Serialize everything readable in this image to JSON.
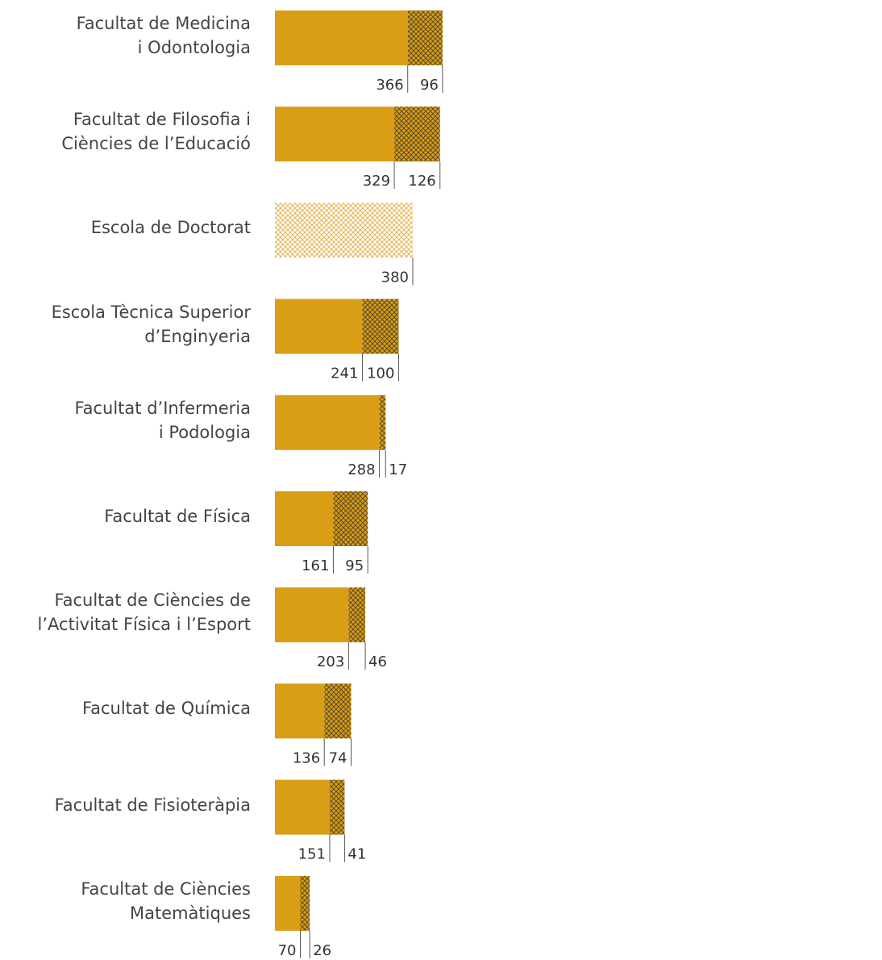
{
  "chart_data": {
    "type": "bar",
    "orientation": "horizontal",
    "stacked": true,
    "categories": [
      "Facultat de Medicina\ni Odontologia",
      "Facultat de Filosofia i\nCiències de l’Educació",
      "Escola de Doctorat",
      "Escola Tècnica Superior\nd’Enginyeria",
      "Facultat d’Infermeria\ni Podologia",
      "Facultat de Física",
      "Facultat de Ciències de\nl’Activitat Física i l’Esport",
      "Facultat de Química",
      "Facultat de Fisioteràpia",
      "Facultat de Ciències\nMatemàtiques"
    ],
    "series": [
      {
        "color": "#d99e16",
        "pattern": "solid",
        "values": [
          366,
          329,
          null,
          241,
          288,
          161,
          203,
          136,
          151,
          70
        ]
      },
      {
        "color": "#5c4a26",
        "pattern": "crosshatch",
        "values": [
          96,
          126,
          null,
          100,
          17,
          95,
          46,
          74,
          41,
          26
        ]
      },
      {
        "color": "#e3b555",
        "pattern": "crosshatch",
        "values": [
          null,
          null,
          380,
          null,
          null,
          null,
          null,
          null,
          null,
          null
        ]
      }
    ]
  }
}
